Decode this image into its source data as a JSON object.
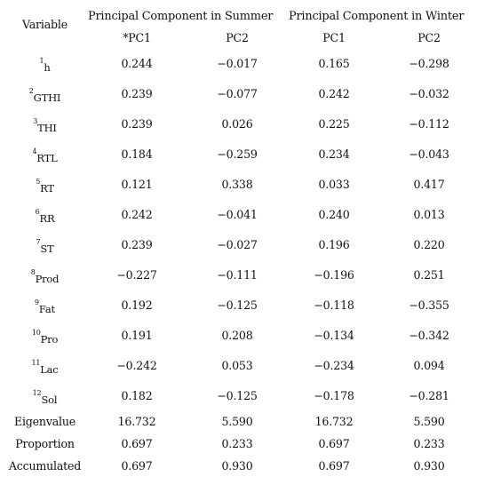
{
  "header": {
    "variable_label": "Variable",
    "summer_group": "Principal Component in Summer",
    "winter_group": "Principal Component in Winter",
    "summer_pc1": "*PC1",
    "summer_pc2": "PC2",
    "winter_pc1": "PC1",
    "winter_pc2": "PC2"
  },
  "rows": [
    {
      "num": "1",
      "name": "h",
      "s1": "0.244",
      "s2": "−0.017",
      "w1": "0.165",
      "w2": "−0.298"
    },
    {
      "num": "2",
      "name": "GTHI",
      "s1": "0.239",
      "s2": "−0.077",
      "w1": "0.242",
      "w2": "−0.032"
    },
    {
      "num": "3",
      "name": "THI",
      "s1": "0.239",
      "s2": "0.026",
      "w1": "0.225",
      "w2": "−0.112"
    },
    {
      "num": "4",
      "name": "RTL",
      "s1": "0.184",
      "s2": "−0.259",
      "w1": "0.234",
      "w2": "−0.043"
    },
    {
      "num": "5",
      "name": "RT",
      "s1": "0.121",
      "s2": "0.338",
      "w1": "0.033",
      "w2": "0.417"
    },
    {
      "num": "6",
      "name": "RR",
      "s1": "0.242",
      "s2": "−0.041",
      "w1": "0.240",
      "w2": "0.013"
    },
    {
      "num": "7",
      "name": "ST",
      "s1": "0.239",
      "s2": "−0.027",
      "w1": "0.196",
      "w2": "0.220"
    },
    {
      "num": "8",
      "name": "Prod",
      "s1": "−0.227",
      "s2": "−0.111",
      "w1": "−0.196",
      "w2": "0.251"
    },
    {
      "num": "9",
      "name": "Fat",
      "s1": "0.192",
      "s2": "−0.125",
      "w1": "−0.118",
      "w2": "−0.355"
    },
    {
      "num": "10",
      "name": "Pro",
      "s1": "0.191",
      "s2": "0.208",
      "w1": "−0.134",
      "w2": "−0.342"
    },
    {
      "num": "11",
      "name": "Lac",
      "s1": "−0.242",
      "s2": "0.053",
      "w1": "−0.234",
      "w2": "0.094"
    },
    {
      "num": "12",
      "name": "Sol",
      "s1": "0.182",
      "s2": "−0.125",
      "w1": "−0.178",
      "w2": "−0.281"
    }
  ],
  "summary": [
    {
      "label": "Eigenvalue",
      "s1": "16.732",
      "s2": "5.590",
      "w1": "16.732",
      "w2": "5.590"
    },
    {
      "label": "Proportion",
      "s1": "0.697",
      "s2": "0.233",
      "w1": "0.697",
      "w2": "0.233"
    },
    {
      "label": "Accumulated",
      "s1": "0.697",
      "s2": "0.930",
      "w1": "0.697",
      "w2": "0.930"
    }
  ]
}
